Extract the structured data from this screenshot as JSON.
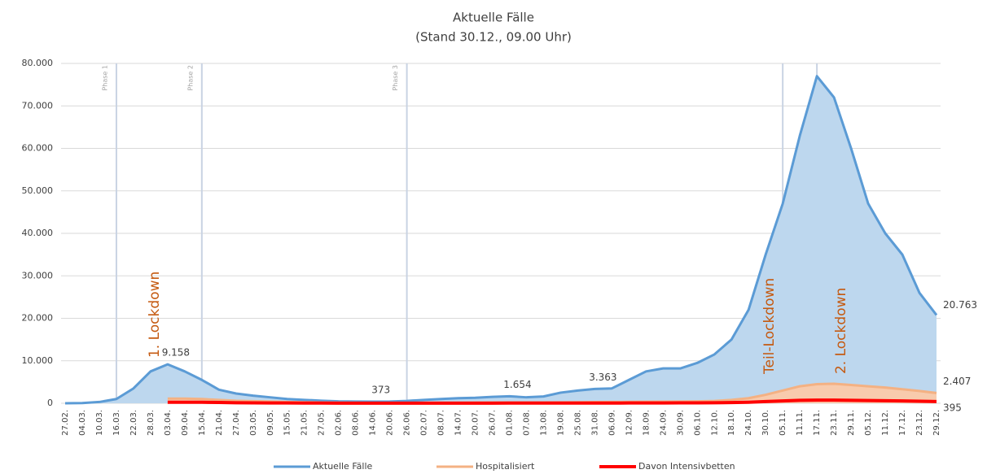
{
  "chart_data": {
    "type": "area",
    "title": "Aktuelle Fälle",
    "subtitle": "(Stand 30.12., 09.00 Uhr)",
    "categories": [
      "27.02.",
      "04.03.",
      "10.03.",
      "16.03.",
      "22.03.",
      "28.03.",
      "03.04.",
      "09.04.",
      "15.04.",
      "21.04.",
      "27.04.",
      "03.05.",
      "09.05.",
      "15.05.",
      "21.05.",
      "27.05.",
      "02.06.",
      "08.06.",
      "14.06.",
      "20.06.",
      "26.06.",
      "02.07.",
      "08.07.",
      "14.07.",
      "20.07.",
      "26.07.",
      "01.08.",
      "07.08.",
      "13.08.",
      "19.08.",
      "25.08.",
      "31.08.",
      "06.09.",
      "12.09.",
      "18.09.",
      "24.09.",
      "30.09.",
      "06.10.",
      "12.10.",
      "18.10.",
      "24.10.",
      "30.10.",
      "05.11.",
      "11.11.",
      "17.11.",
      "23.11.",
      "29.11.",
      "05.12.",
      "11.12.",
      "17.12.",
      "23.12.",
      "29.12."
    ],
    "series": [
      {
        "name": "Aktuelle Fälle",
        "color": "#5b9bd5",
        "fill": "#bdd7ee",
        "values": [
          0,
          50,
          300,
          1000,
          3500,
          7500,
          9158,
          7500,
          5500,
          3200,
          2300,
          1800,
          1400,
          1000,
          800,
          600,
          450,
          400,
          373,
          400,
          550,
          800,
          1000,
          1200,
          1300,
          1500,
          1654,
          1400,
          1600,
          2500,
          3000,
          3363,
          3500,
          5500,
          7500,
          8200,
          8200,
          9500,
          11500,
          15000,
          22000,
          35000,
          47000,
          63000,
          77000,
          72000,
          60000,
          47000,
          40000,
          35000,
          26000,
          20763
        ],
        "value_labels": [
          null,
          null,
          null,
          null,
          null,
          null,
          "9.158",
          null,
          null,
          null,
          null,
          null,
          null,
          null,
          null,
          null,
          null,
          null,
          "373",
          null,
          null,
          null,
          null,
          null,
          null,
          null,
          "1.654",
          null,
          null,
          null,
          null,
          "3.363",
          null,
          null,
          null,
          null,
          null,
          null,
          null,
          null,
          null,
          null,
          null,
          null,
          null,
          null,
          null,
          null,
          null,
          null,
          null,
          "20.763"
        ]
      },
      {
        "name": "Hospitalisiert",
        "color": "#f4b183",
        "fill": "#f8cbad",
        "values": [
          null,
          null,
          null,
          null,
          null,
          null,
          1100,
          1100,
          1000,
          800,
          600,
          500,
          400,
          300,
          250,
          200,
          150,
          120,
          100,
          100,
          100,
          120,
          150,
          150,
          160,
          180,
          200,
          200,
          200,
          220,
          250,
          280,
          300,
          330,
          350,
          380,
          400,
          450,
          550,
          800,
          1200,
          2000,
          3000,
          4000,
          4500,
          4600,
          4300,
          4000,
          3700,
          3300,
          2900,
          2407
        ],
        "value_labels": [
          null,
          null,
          null,
          null,
          null,
          null,
          null,
          null,
          null,
          null,
          null,
          null,
          null,
          null,
          null,
          null,
          null,
          null,
          null,
          null,
          null,
          null,
          null,
          null,
          null,
          null,
          null,
          null,
          null,
          null,
          null,
          null,
          null,
          null,
          null,
          null,
          null,
          null,
          null,
          null,
          null,
          null,
          null,
          null,
          null,
          null,
          null,
          null,
          null,
          null,
          null,
          "2.407"
        ]
      },
      {
        "name": "Davon Intensivbetten",
        "color": "#ff0000",
        "fill": null,
        "values": [
          null,
          null,
          null,
          null,
          null,
          null,
          250,
          250,
          230,
          180,
          130,
          100,
          80,
          60,
          50,
          40,
          30,
          25,
          20,
          20,
          20,
          25,
          30,
          30,
          30,
          35,
          40,
          40,
          40,
          40,
          45,
          50,
          55,
          60,
          70,
          80,
          90,
          100,
          120,
          160,
          250,
          400,
          550,
          700,
          750,
          750,
          700,
          650,
          600,
          550,
          480,
          395
        ],
        "value_labels": [
          null,
          null,
          null,
          null,
          null,
          null,
          null,
          null,
          null,
          null,
          null,
          null,
          null,
          null,
          null,
          null,
          null,
          null,
          null,
          null,
          null,
          null,
          null,
          null,
          null,
          null,
          null,
          null,
          null,
          null,
          null,
          null,
          null,
          null,
          null,
          null,
          null,
          null,
          null,
          null,
          null,
          null,
          null,
          null,
          null,
          null,
          null,
          null,
          null,
          null,
          null,
          "395"
        ]
      }
    ],
    "ylim": [
      0,
      80000
    ],
    "yticks": [
      0,
      {
        "value": 10000,
        "label": "10.000"
      },
      {
        "value": 20000,
        "label": "20.000"
      },
      {
        "value": 30000,
        "label": "30.000"
      },
      {
        "value": 40000,
        "label": "40.000"
      },
      {
        "value": 50000,
        "label": "50.000"
      },
      {
        "value": 60000,
        "label": "60.000"
      },
      {
        "value": 70000,
        "label": "70.000"
      },
      {
        "value": 80000,
        "label": "80.000"
      }
    ],
    "grid": true,
    "legend": "bottom",
    "phases": [
      {
        "label": "Phase 1",
        "at": "16.03."
      },
      {
        "label": "Phase 2",
        "at": "15.04."
      },
      {
        "label": "Phase 3",
        "at": "26.06."
      }
    ],
    "lockdowns": [
      {
        "label": "1. Lockdown",
        "at": "28.03.",
        "line": false
      },
      {
        "label": "Teil-Lockdown",
        "at": "05.11.",
        "line": true
      },
      {
        "label": "2. Lockdown",
        "at": "17.11.",
        "line": true
      }
    ]
  }
}
